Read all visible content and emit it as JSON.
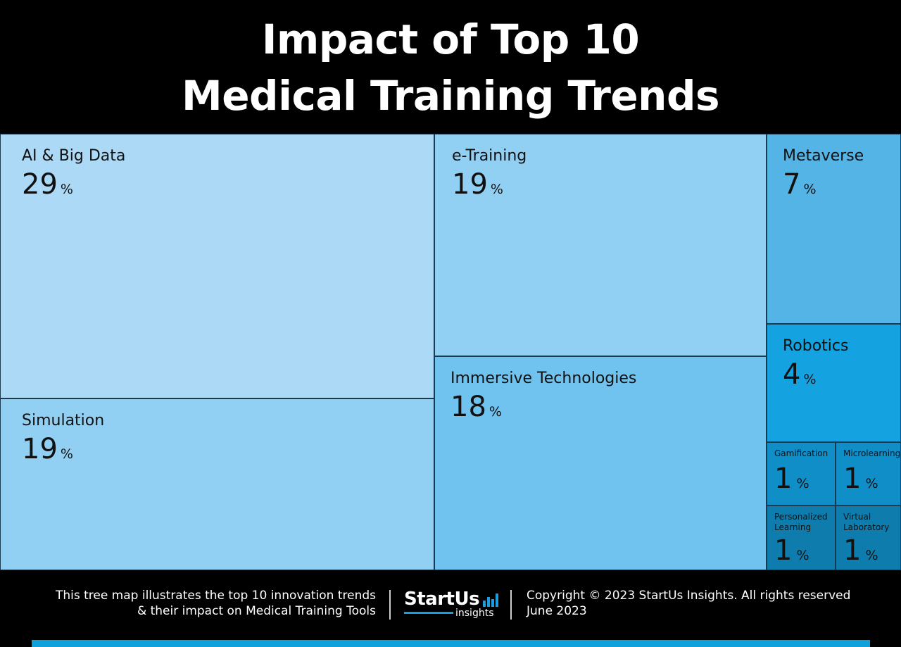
{
  "title": {
    "line1": "Impact of Top 10",
    "line2": "Medical Training Trends"
  },
  "chart_data": {
    "type": "treemap",
    "unit": "%",
    "items": [
      {
        "name": "AI & Big Data",
        "value": 29,
        "color": "#acd9f6"
      },
      {
        "name": "Simulation",
        "value": 19,
        "color": "#92d0f3"
      },
      {
        "name": "e-Training",
        "value": 19,
        "color": "#92d0f3"
      },
      {
        "name": "Immersive Technologies",
        "value": 18,
        "color": "#6fc3ee"
      },
      {
        "name": "Metaverse",
        "value": 7,
        "color": "#53b4e5"
      },
      {
        "name": "Robotics",
        "value": 4,
        "color": "#14a3e0"
      },
      {
        "name": "Gamification",
        "value": 1,
        "color": "#0f8ec8"
      },
      {
        "name": "Microlearning",
        "value": 1,
        "color": "#0f8ec8"
      },
      {
        "name": "Personalized Learning",
        "value": 1,
        "color": "#0e7cad"
      },
      {
        "name": "Virtual Laboratory",
        "value": 1,
        "color": "#0e7cad"
      }
    ]
  },
  "footer": {
    "description_line1": "This tree map illustrates the top 10 innovation trends",
    "description_line2": "& their impact on Medical Training Tools",
    "logo_main": "StartUs",
    "logo_sub": "insights",
    "copyright": "Copyright © 2023 StartUs Insights. All rights reserved",
    "date": "June 2023"
  },
  "colors": {
    "background": "#000000",
    "accent": "#0ea1dc"
  }
}
